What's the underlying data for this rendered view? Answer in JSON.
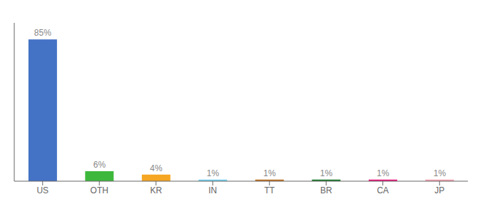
{
  "chart_data": {
    "type": "bar",
    "categories": [
      "US",
      "OTH",
      "KR",
      "IN",
      "TT",
      "BR",
      "CA",
      "JP"
    ],
    "values": [
      85,
      6,
      4,
      1,
      1,
      1,
      1,
      1
    ],
    "value_labels": [
      "85%",
      "6%",
      "4%",
      "1%",
      "1%",
      "1%",
      "1%",
      "1%"
    ],
    "colors": [
      "#4472c4",
      "#3db83d",
      "#f5a623",
      "#76d0f0",
      "#c07020",
      "#1a7a2a",
      "#e8197a",
      "#f5a0b0"
    ],
    "ylim": [
      0,
      95
    ],
    "data_labels": true,
    "tick_labels": "x",
    "grid": false
  }
}
